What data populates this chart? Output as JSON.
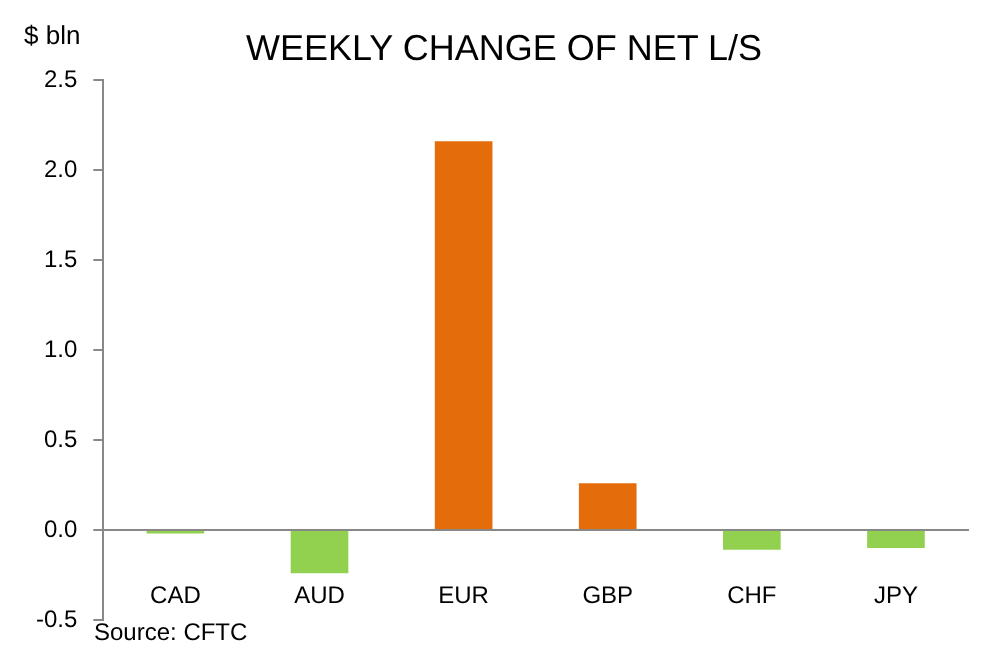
{
  "chart_data": {
    "type": "bar",
    "title": "WEEKLY CHANGE OF NET L/S",
    "ylabel": "$ bln",
    "categories": [
      "CAD",
      "AUD",
      "EUR",
      "GBP",
      "CHF",
      "JPY"
    ],
    "values": [
      -0.02,
      -0.24,
      2.16,
      0.26,
      -0.11,
      -0.1
    ],
    "colors": [
      "#92d050",
      "#92d050",
      "#e46c0a",
      "#e46c0a",
      "#92d050",
      "#92d050"
    ],
    "ylim": [
      -0.5,
      2.5
    ],
    "yticks": [
      {
        "value": -0.5,
        "label": "-0.5"
      },
      {
        "value": 0,
        "label": "0.0"
      },
      {
        "value": 0.5,
        "label": "0.5"
      },
      {
        "value": 1,
        "label": "1.0"
      },
      {
        "value": 1.5,
        "label": "1.5"
      },
      {
        "value": 2,
        "label": "2.0"
      },
      {
        "value": 2.5,
        "label": "2.5"
      }
    ],
    "grid": false,
    "legend": false,
    "annotations": [
      "Source: CFTC"
    ]
  }
}
